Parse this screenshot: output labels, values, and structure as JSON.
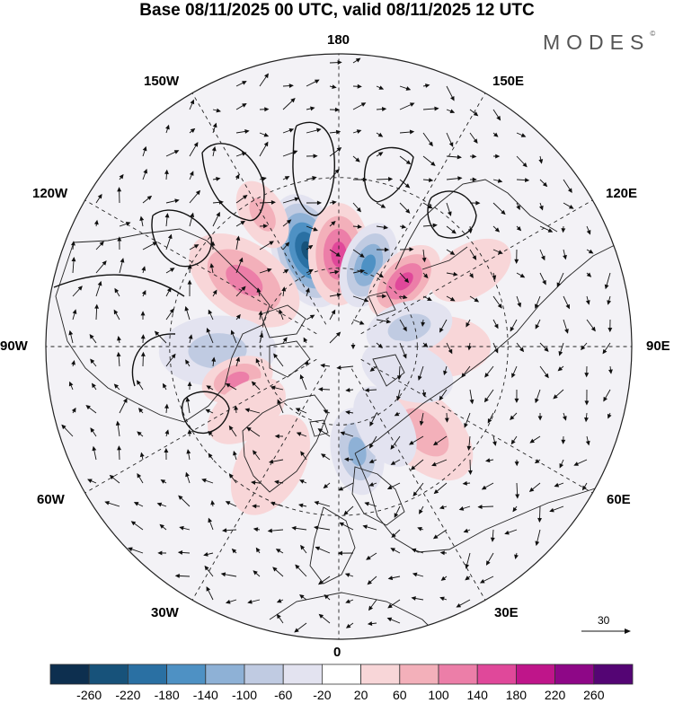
{
  "title": "Base 08/11/2025 00 UTC, valid 08/11/2025 12 UTC",
  "logo": {
    "text": "MODES",
    "mark": "©"
  },
  "longitude_labels": {
    "top": "180",
    "upper_left": "150W",
    "upper_right": "150E",
    "left_upper": "120W",
    "right_upper": "120E",
    "left": "90W",
    "right": "90E",
    "left_lower": "60W",
    "right_lower": "60E",
    "lower_left": "30W",
    "lower_right": "30E",
    "bottom": "0"
  },
  "reference_vector": {
    "value": "30"
  },
  "colorbar": {
    "labels": [
      "-260",
      "-220",
      "-180",
      "-140",
      "-100",
      "-60",
      "-20",
      "20",
      "60",
      "100",
      "140",
      "180",
      "220",
      "260"
    ],
    "colors": [
      "#0d2f4f",
      "#17527a",
      "#2a70a3",
      "#4e91c4",
      "#8eb1d6",
      "#c0cbe2",
      "#e3e3f0",
      "#ffffff",
      "#f8d6d8",
      "#f3b0ba",
      "#ec7ea8",
      "#e0489a",
      "#bf158a",
      "#8e0787",
      "#540574"
    ]
  },
  "anomaly_blobs": [
    {
      "lon": -162,
      "lat": 52,
      "value": -230,
      "r": 0.16
    },
    {
      "lon": 180,
      "lat": 55,
      "value": 170,
      "r": 0.14
    },
    {
      "lon": 160,
      "lat": 57,
      "value": -160,
      "r": 0.12
    },
    {
      "lon": -125,
      "lat": 47,
      "value": 130,
      "r": 0.17
    },
    {
      "lon": 135,
      "lat": 55,
      "value": 150,
      "r": 0.12
    },
    {
      "lon": -88,
      "lat": 45,
      "value": -80,
      "r": 0.16
    },
    {
      "lon": -72,
      "lat": 50,
      "value": 120,
      "r": 0.1
    },
    {
      "lon": -55,
      "lat": 48,
      "value": 40,
      "r": 0.12
    },
    {
      "lon": 10,
      "lat": 50,
      "value": -100,
      "r": 0.12
    },
    {
      "lon": 45,
      "lat": 45,
      "value": 60,
      "r": 0.16
    },
    {
      "lon": 90,
      "lat": 52,
      "value": 45,
      "r": 0.14
    },
    {
      "lon": 105,
      "lat": 62,
      "value": -60,
      "r": 0.12
    },
    {
      "lon": -30,
      "lat": 40,
      "value": 55,
      "r": 0.15
    },
    {
      "lon": 30,
      "lat": 55,
      "value": -45,
      "r": 0.12
    },
    {
      "lon": 70,
      "lat": 62,
      "value": -40,
      "r": 0.13
    },
    {
      "lon": -150,
      "lat": 35,
      "value": 60,
      "r": 0.1
    },
    {
      "lon": 120,
      "lat": 35,
      "value": 40,
      "r": 0.12
    }
  ]
}
